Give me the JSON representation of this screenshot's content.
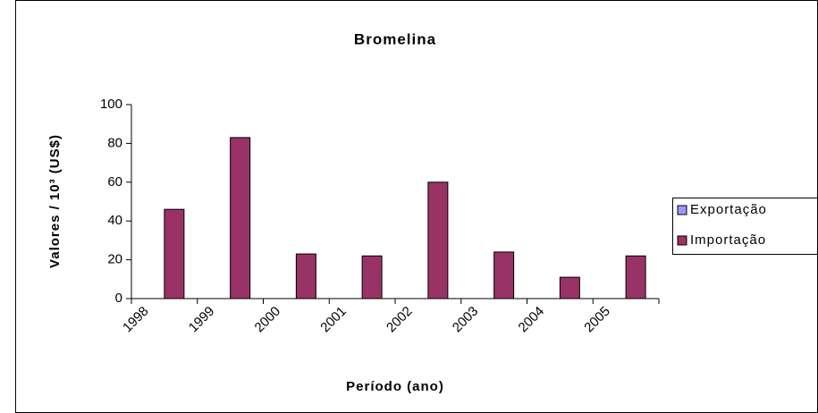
{
  "chart_data": {
    "type": "bar",
    "title": "Bromelina",
    "x_label": "Período (ano)",
    "y_label": "Valores / 10³ (US$)",
    "categories": [
      "1998",
      "1999",
      "2000",
      "2001",
      "2002",
      "2003",
      "2004",
      "2005"
    ],
    "series": [
      {
        "name": "Exportação",
        "color": "#9999ff",
        "values": [
          0,
          0,
          0,
          0,
          0,
          0,
          0,
          0
        ]
      },
      {
        "name": "Importação",
        "color": "#993366",
        "values": [
          46,
          83,
          23,
          22,
          60,
          24,
          11,
          22
        ]
      }
    ],
    "ylim": [
      0,
      100
    ],
    "yticks": [
      0,
      20,
      40,
      60,
      80,
      100
    ],
    "grid": false,
    "legend": "right"
  }
}
